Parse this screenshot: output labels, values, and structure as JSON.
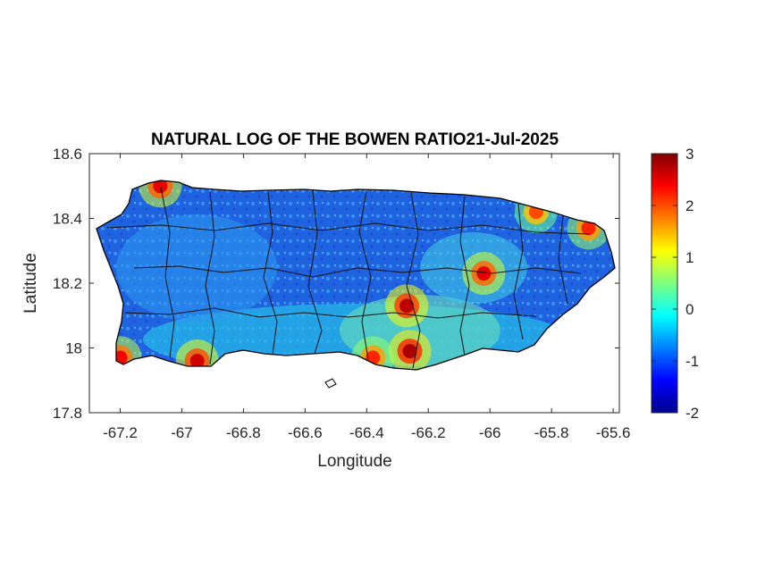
{
  "chart_data": {
    "type": "heatmap",
    "title": "NATURAL LOG OF THE BOWEN RATIO21-Jul-2025",
    "xlabel": "Longitude",
    "ylabel": "Latitude",
    "xlim": [
      -67.3,
      -65.58
    ],
    "ylim": [
      17.8,
      18.6
    ],
    "xticks": [
      -67.2,
      -67,
      -66.8,
      -66.6,
      -66.4,
      -66.2,
      -66,
      -65.8,
      -65.6
    ],
    "xtick_labels": [
      "-67.2",
      "-67",
      "-66.8",
      "-66.6",
      "-66.4",
      "-66.2",
      "-66",
      "-65.8",
      "-65.6"
    ],
    "yticks": [
      17.8,
      18,
      18.2,
      18.4,
      18.6
    ],
    "ytick_labels": [
      "17.8",
      "18",
      "18.2",
      "18.4",
      "18.6"
    ],
    "colorbar": {
      "colormap": "jet",
      "range": [
        -2,
        3
      ],
      "ticks": [
        -2,
        -1,
        0,
        1,
        2,
        3
      ],
      "tick_labels": [
        "-2",
        "-1",
        "0",
        "1",
        "2",
        "3"
      ]
    },
    "grid": false,
    "field_summary": {
      "background_value": -0.5,
      "hotspots": [
        {
          "lon": -66.26,
          "lat": 17.99,
          "value": 2.8
        },
        {
          "lon": -66.38,
          "lat": 17.97,
          "value": 2.2
        },
        {
          "lon": -66.95,
          "lat": 17.96,
          "value": 2.6
        },
        {
          "lon": -67.2,
          "lat": 17.97,
          "value": 2.4
        },
        {
          "lon": -66.02,
          "lat": 18.23,
          "value": 2.5
        },
        {
          "lon": -66.27,
          "lat": 18.13,
          "value": 2.7
        },
        {
          "lon": -67.07,
          "lat": 18.5,
          "value": 2.5
        },
        {
          "lon": -65.85,
          "lat": 18.42,
          "value": 2.0
        },
        {
          "lon": -65.68,
          "lat": 18.37,
          "value": 2.2
        }
      ]
    }
  }
}
